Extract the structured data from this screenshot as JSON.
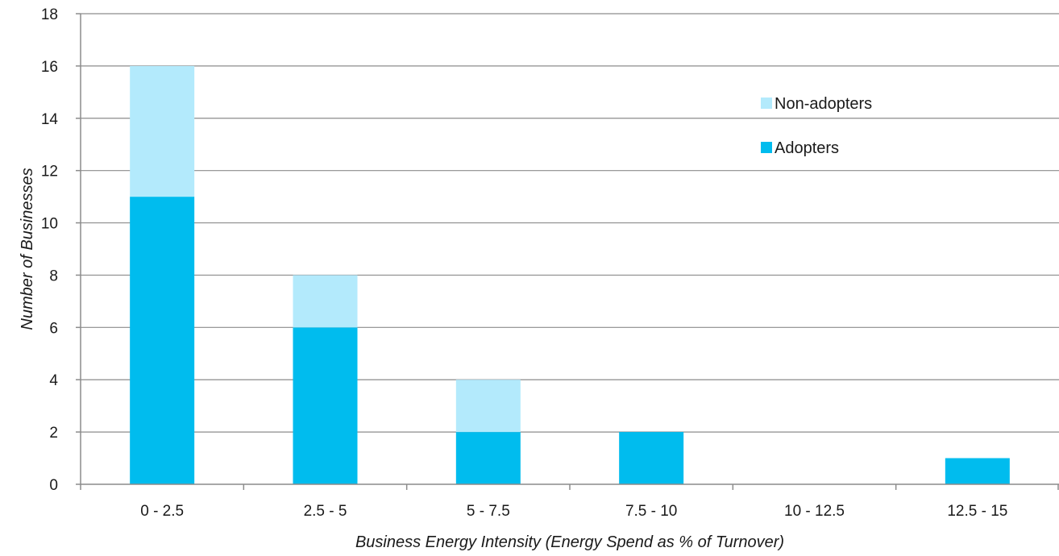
{
  "chart_data": {
    "type": "bar",
    "stacked": true,
    "categories": [
      "0 - 2.5",
      "2.5 - 5",
      "5 - 7.5",
      "7.5 - 10",
      "10 - 12.5",
      "12.5 - 15"
    ],
    "series": [
      {
        "name": "Adopters",
        "values": [
          11,
          6,
          2,
          2,
          0,
          1
        ],
        "color": "#00bcee"
      },
      {
        "name": "Non-adopters",
        "values": [
          5,
          2,
          2,
          0,
          0,
          0
        ],
        "color": "#b3eafc"
      }
    ],
    "xlabel": "Business Energy Intensity (Energy Spend as % of Turnover)",
    "ylabel": "Number of Businesses",
    "ylim": [
      0,
      18
    ],
    "yticks": [
      0,
      2,
      4,
      6,
      8,
      10,
      12,
      14,
      16,
      18
    ],
    "grid": true,
    "legend": {
      "placement": "top-right",
      "entries": [
        {
          "label": "Non-adopters",
          "color": "#b3eafc"
        },
        {
          "label": "Adopters",
          "color": "#00bcee"
        }
      ]
    }
  }
}
